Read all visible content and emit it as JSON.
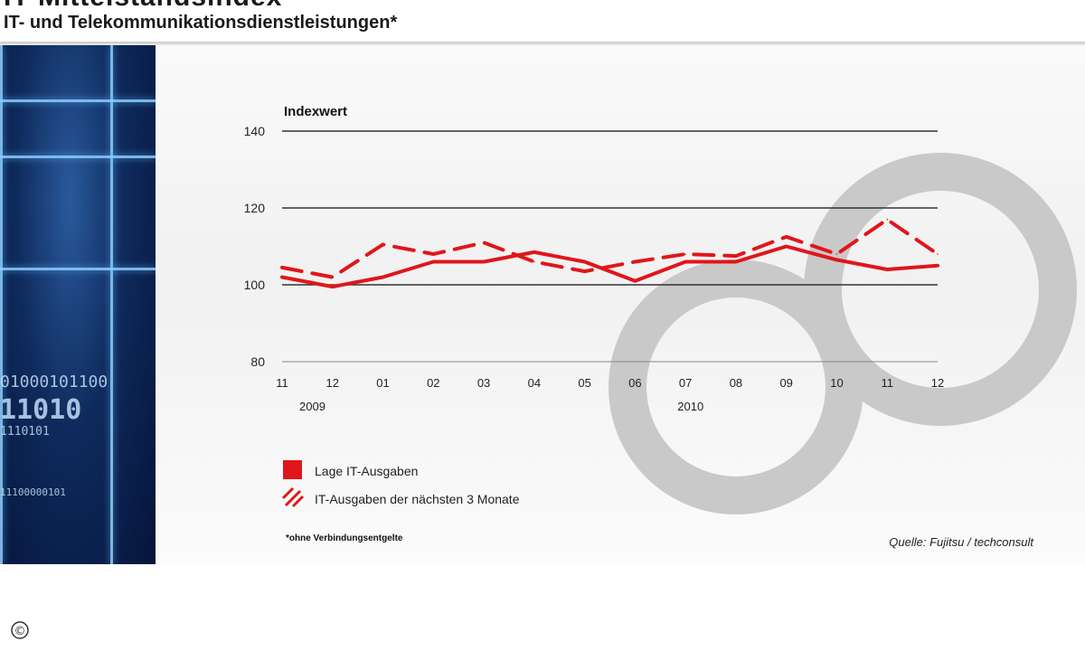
{
  "header": {
    "title": "IT-Mittelstandsindex",
    "subtitle": "IT- und Telekommunikationsdienstleistungen*"
  },
  "left_panel": {
    "binary_lines": [
      "01000101100",
      "11010",
      "1110101",
      "11100000101"
    ]
  },
  "chart_data": {
    "type": "line",
    "ylabel": "Indexwert",
    "ylim": [
      80,
      140
    ],
    "yticks": [
      80,
      100,
      120,
      140
    ],
    "gridlines_at": [
      100,
      120,
      140
    ],
    "categories": [
      "11",
      "12",
      "01",
      "02",
      "03",
      "04",
      "05",
      "06",
      "07",
      "08",
      "09",
      "10",
      "11",
      "12"
    ],
    "year_labels": [
      {
        "label": "2009",
        "category_index": 0.6
      },
      {
        "label": "2010",
        "category_index": 8.1
      }
    ],
    "series": [
      {
        "name": "Lage IT-Ausgaben",
        "style": "solid",
        "color": "#e0161b",
        "values": [
          102,
          99.5,
          102,
          106,
          106,
          108.5,
          106,
          101,
          106,
          106,
          110,
          106.5,
          104,
          105
        ]
      },
      {
        "name": "IT-Ausgaben der nächsten 3 Monate",
        "style": "dashed",
        "color": "#e0161b",
        "values": [
          104.5,
          102,
          110.5,
          108,
          111,
          106,
          103.5,
          106,
          108,
          107.5,
          112.5,
          108,
          117,
          108
        ]
      }
    ],
    "legend_position": "bottom-left",
    "footnote": "*ohne Verbindungsentgelte",
    "source": "Quelle: Fujitsu / techconsult"
  },
  "colors": {
    "accent_red": "#e0161b",
    "gridline": "#333333",
    "watermark": "#c9c9c9"
  },
  "icons": {
    "copyright": "copyright-icon"
  },
  "copyright_symbol": "©"
}
